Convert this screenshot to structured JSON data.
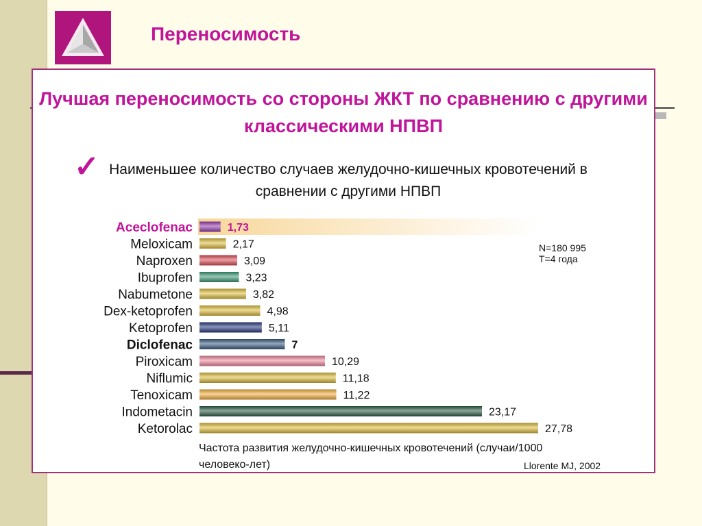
{
  "slide_title": "Переносимость",
  "headline": "Лучшая переносимость со стороны ЖКТ по сравнению с другими классическими НПВП",
  "subtitle": "Наименьшее количество случаев желудочно-кишечных кровотечений  в сравнении с другими НПВП",
  "check_glyph": "✓",
  "notes": [
    "N=180 995",
    "T=4 года"
  ],
  "source": "Llorente MJ, 2002",
  "chart_data": {
    "type": "bar",
    "orientation": "horizontal",
    "categories": [
      "Aceclofenac",
      "Meloxicam",
      "Naproxen",
      "Ibuprofen",
      "Nabumetone",
      "Dex-ketoprofen",
      "Ketoprofen",
      "Diclofenac",
      "Piroxicam",
      "Niflumic",
      "Tenoxicam",
      "Indometacin",
      "Ketorolac"
    ],
    "values": [
      1.73,
      2.17,
      3.09,
      3.23,
      3.82,
      4.98,
      5.11,
      7,
      10.29,
      11.18,
      11.22,
      23.17,
      27.78
    ],
    "value_labels": [
      "1,73",
      "2,17",
      "3,09",
      "3,23",
      "3,82",
      "4,98",
      "5,11",
      "7",
      "10,29",
      "11,18",
      "11,22",
      "23,17",
      "27,78"
    ],
    "bar_colors": [
      "#9a3fb0",
      "#e0c040",
      "#e0505a",
      "#3f9a78",
      "#e0c040",
      "#e0c040",
      "#2a3a80",
      "#3a5e82",
      "#f08aa0",
      "#e0c040",
      "#f5b040",
      "#2e5e46",
      "#e0c040"
    ],
    "bold_categories": [
      "Aceclofenac",
      "Diclofenac"
    ],
    "highlight_category": "Aceclofenac",
    "highlight_color": "#c0149a",
    "xlabel": "Частота развития  желудочно-кишечных кровотечений (случаи/1000 человеко-лет)",
    "xlim": [
      0,
      27.78
    ]
  }
}
